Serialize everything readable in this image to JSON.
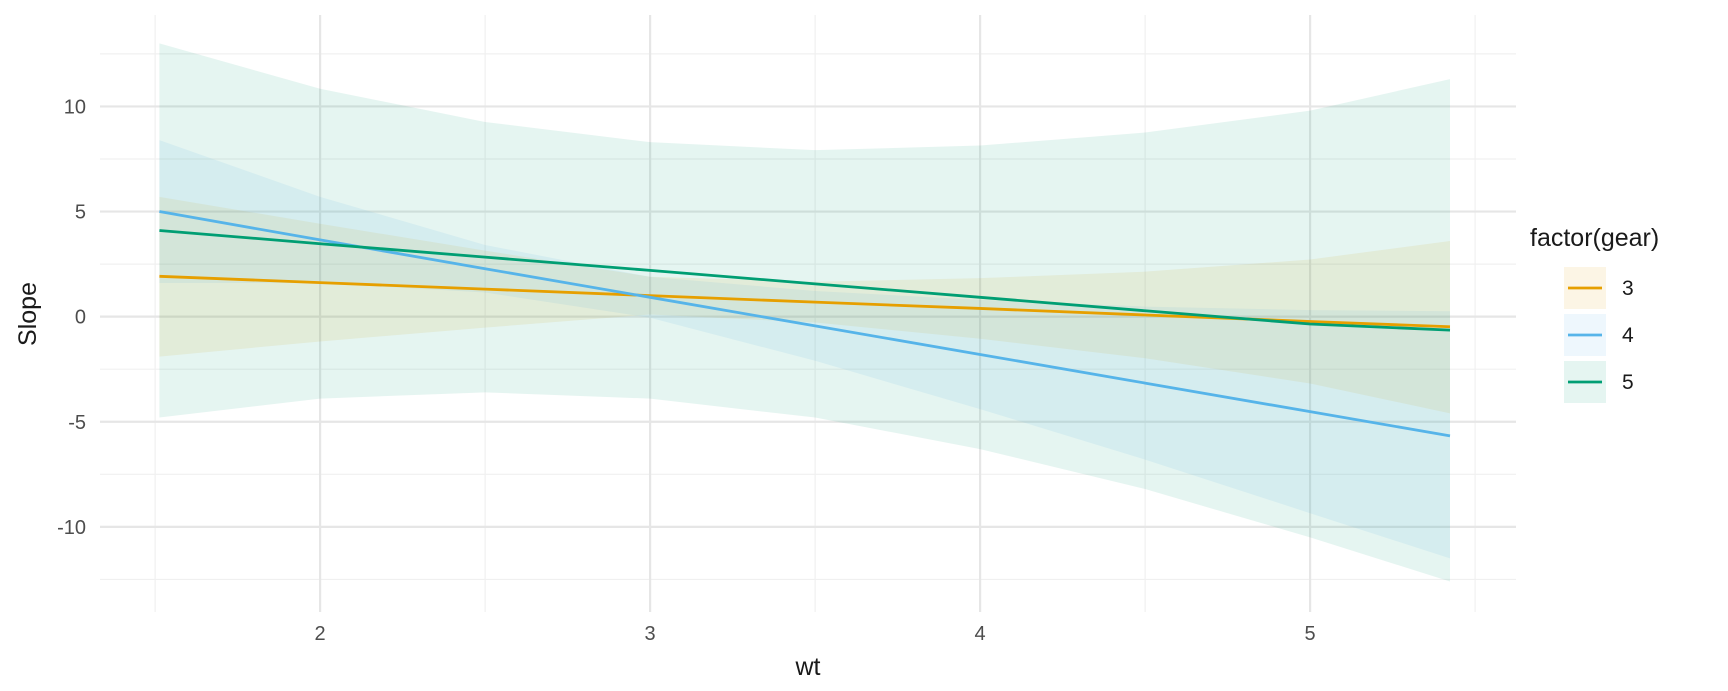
{
  "chart_data": {
    "type": "line",
    "title": "",
    "xlabel": "wt",
    "ylabel": "Slope",
    "xlim": [
      1.333,
      5.624
    ],
    "ylim": [
      -14.05,
      14.35
    ],
    "x_ticks": [
      2,
      3,
      4,
      5
    ],
    "x_tick_labels": [
      "2",
      "3",
      "4",
      "5"
    ],
    "y_ticks": [
      -10,
      -5,
      0,
      5,
      10
    ],
    "y_tick_labels": [
      "-10",
      "-5",
      "0",
      "5",
      "10"
    ],
    "grid": true,
    "legend": {
      "title": "factor(gear)",
      "position": "right"
    },
    "x": [
      1.513,
      2.0,
      2.5,
      3.0,
      3.5,
      4.0,
      4.5,
      5.0,
      5.424
    ],
    "series": [
      {
        "name": "3",
        "color": "#E69F00",
        "values": [
          1.92,
          1.62,
          1.31,
          1.0,
          0.69,
          0.39,
          0.08,
          -0.23,
          -0.48
        ],
        "lower": [
          -1.9,
          -1.18,
          -0.52,
          0.1,
          -0.28,
          -1.05,
          -1.98,
          -3.18,
          -4.6
        ],
        "upper": [
          5.7,
          4.42,
          3.14,
          1.9,
          1.66,
          1.83,
          2.14,
          2.72,
          3.6
        ]
      },
      {
        "name": "4",
        "color": "#56B4E9",
        "values": [
          5.0,
          3.65,
          2.28,
          0.92,
          -0.44,
          -1.8,
          -3.16,
          -4.52,
          -5.67
        ],
        "lower": [
          1.6,
          1.6,
          1.15,
          -0.05,
          -2.1,
          -4.4,
          -6.8,
          -9.35,
          -11.5
        ],
        "upper": [
          8.4,
          5.7,
          3.41,
          1.89,
          1.22,
          0.8,
          0.48,
          0.31,
          0.26
        ]
      },
      {
        "name": "5",
        "color": "#009E73",
        "values": [
          4.1,
          3.47,
          2.83,
          2.2,
          1.56,
          0.92,
          0.28,
          -0.35,
          -0.64
        ],
        "lower": [
          -4.8,
          -3.9,
          -3.6,
          -3.9,
          -4.8,
          -6.3,
          -8.2,
          -10.5,
          -12.6
        ],
        "upper": [
          13.0,
          10.84,
          9.26,
          8.3,
          7.92,
          8.14,
          8.76,
          9.8,
          11.3
        ]
      }
    ]
  }
}
